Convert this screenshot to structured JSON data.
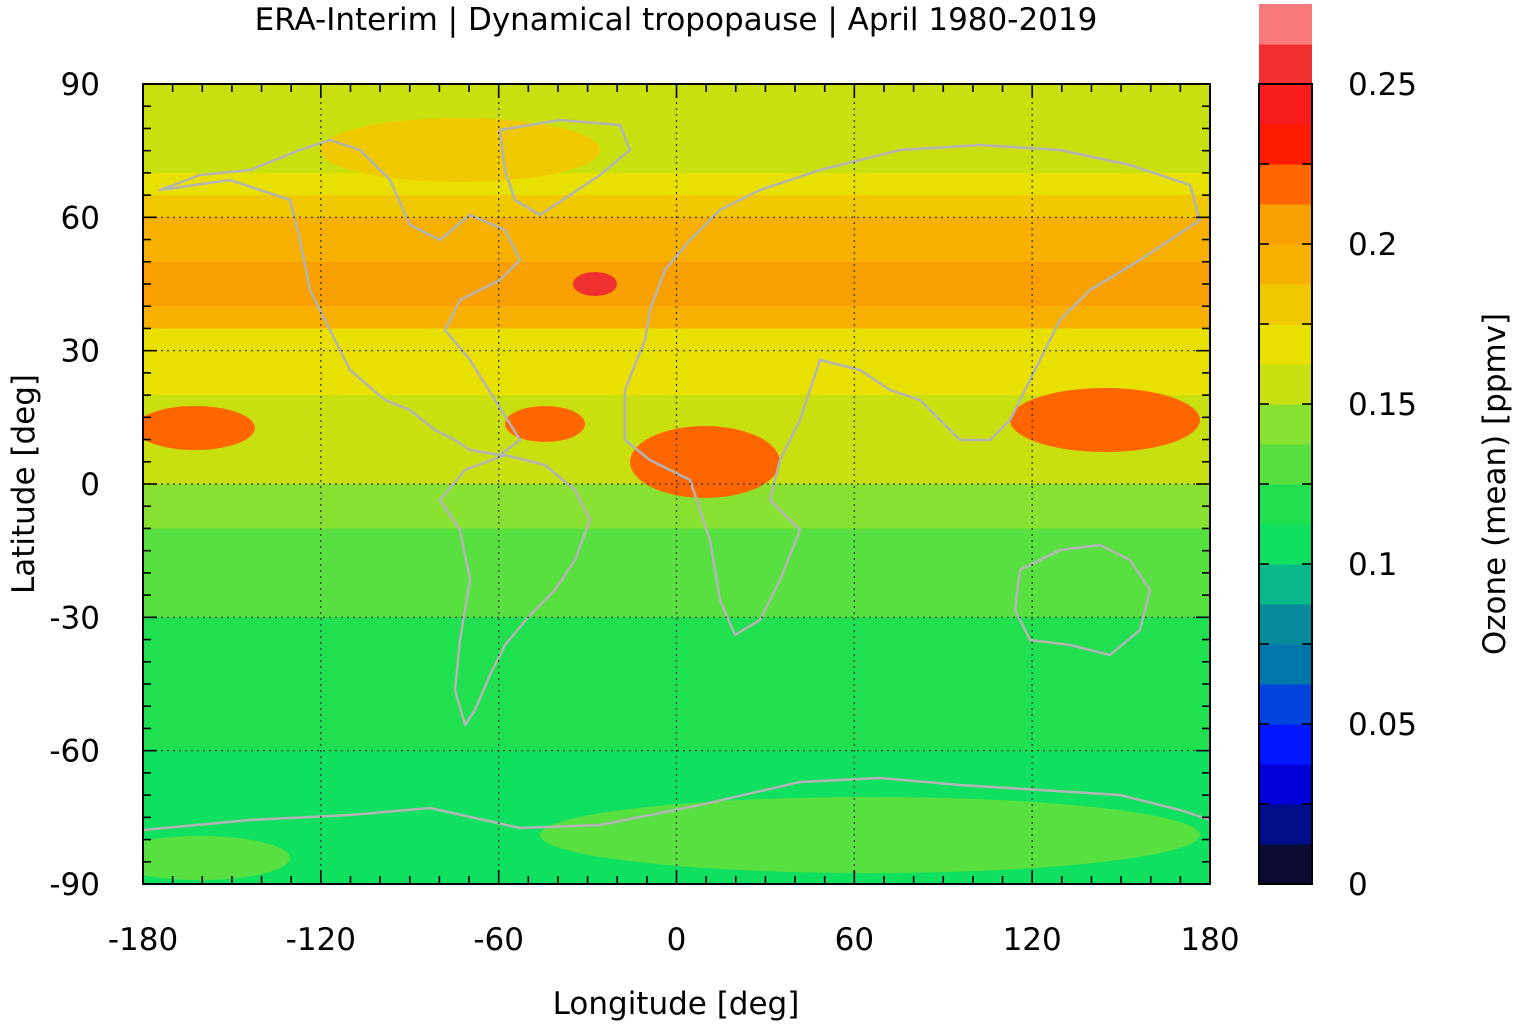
{
  "chart_data": {
    "type": "heatmap",
    "title": "ERA-Interim | Dynamical tropopause | April 1980-2019",
    "xlabel": "Longitude [deg]",
    "ylabel": "Latitude [deg]",
    "colorbar_label": "Ozone (mean) [ppmv]",
    "xlim": [
      -180,
      180
    ],
    "ylim": [
      -90,
      90
    ],
    "x_ticks": [
      -180,
      -120,
      -60,
      0,
      60,
      120,
      180
    ],
    "x_tick_labels": [
      "-180",
      "-120",
      "-60",
      "0",
      "60",
      "120",
      "180"
    ],
    "y_ticks": [
      90,
      60,
      30,
      0,
      -30,
      -60,
      -90
    ],
    "y_tick_labels": [
      "90",
      "60",
      "30",
      "0",
      "-30",
      "-60",
      "-90"
    ],
    "grid": true,
    "colorbar": {
      "range": [
        0,
        0.25
      ],
      "step": 0.0125,
      "tick_values": [
        0.25,
        0.2,
        0.15,
        0.1,
        0.05,
        0
      ],
      "tick_labels": [
        "0.25",
        "0.2",
        "0.15",
        "0.1",
        "0.05",
        "0"
      ],
      "colors": [
        "#0b0b30",
        "#000e8c",
        "#0000d8",
        "#0018ff",
        "#0044dd",
        "#0077aa",
        "#088a9a",
        "#08b888",
        "#10e060",
        "#20e050",
        "#58e040",
        "#88e030",
        "#c8e010",
        "#e8e000",
        "#f0c800",
        "#f8b000",
        "#f8a000",
        "#ff6600",
        "#ff1b00",
        "#f81c1c",
        "#f03030",
        "#f77a7a",
        "#ffd0d0"
      ]
    },
    "zonal_profile": {
      "latitudes": [
        90,
        80,
        70,
        65,
        60,
        50,
        45,
        40,
        35,
        30,
        20,
        10,
        0,
        -10,
        -20,
        -30,
        -40,
        -50,
        -60,
        -70,
        -80,
        -90
      ],
      "values": [
        0.16,
        0.155,
        0.16,
        0.175,
        0.185,
        0.2,
        0.205,
        0.2,
        0.18,
        0.165,
        0.16,
        0.16,
        0.145,
        0.135,
        0.13,
        0.125,
        0.12,
        0.115,
        0.11,
        0.105,
        0.105,
        0.105
      ]
    },
    "coastline_color": "#b4b4b4"
  }
}
